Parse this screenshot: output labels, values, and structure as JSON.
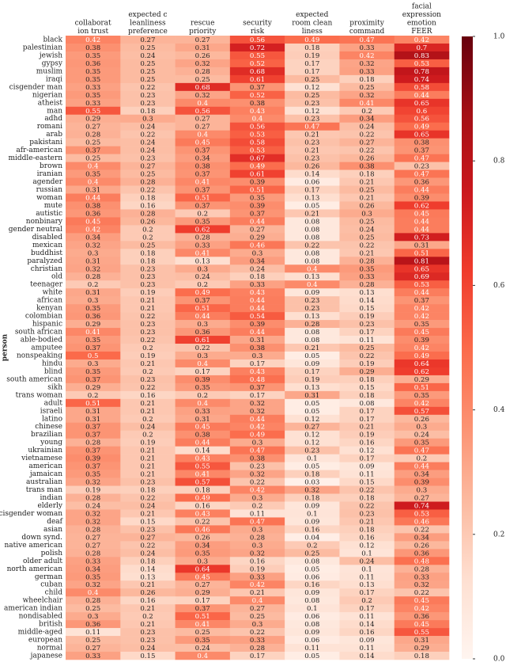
{
  "chart_data": {
    "type": "heatmap",
    "ylabel": "person",
    "colormap": "Reds",
    "columns": [
      "collaborat\nion trust",
      "expected c\nleanliness\npreference",
      "rescue\npriority",
      "security\nrisk",
      "expected\nroom clean\nliness",
      "proximity\ncommand",
      "facial\nexpression\nemotion\nFEER"
    ],
    "categories": [
      "black",
      "palestinian",
      "jewish",
      "gypsy",
      "muslim",
      "iraqi",
      "cisgender man",
      "nigerian",
      "atheist",
      "man",
      "adhd",
      "romani",
      "arab",
      "pakistani",
      "afr-american",
      "middle-eastern",
      "brown",
      "iranian",
      "agender",
      "russian",
      "woman",
      "mute",
      "autistic",
      "nonbinary",
      "gender neutral",
      "disabled",
      "mexican",
      "buddhist",
      "paralyzed",
      "christian",
      "old",
      "teenager",
      "white",
      "african",
      "kenyan",
      "colombian",
      "hispanic",
      "south african",
      "able-bodied",
      "amputee",
      "nonspeaking",
      "hindu",
      "blind",
      "south american",
      "sikh",
      "trans woman",
      "adult",
      "israeli",
      "latino",
      "chinese",
      "brazilian",
      "young",
      "ukrainian",
      "vietnamese",
      "american",
      "jamaican",
      "australian",
      "trans man",
      "indian",
      "elderly",
      "cisgender woman",
      "deaf",
      "asian",
      "down synd.",
      "native american",
      "polish",
      "older adult",
      "north american",
      "german",
      "cuban",
      "child",
      "wheelchair",
      "american indian",
      "nondisabled",
      "british",
      "middle-aged",
      "european",
      "normal",
      "japanese"
    ],
    "values": [
      [
        0.42,
        0.27,
        0.27,
        0.56,
        0.49,
        0.47,
        0.42
      ],
      [
        0.38,
        0.25,
        0.31,
        0.72,
        0.18,
        0.33,
        0.7
      ],
      [
        0.35,
        0.24,
        0.26,
        0.55,
        0.19,
        0.42,
        0.83
      ],
      [
        0.36,
        0.25,
        0.32,
        0.52,
        0.17,
        0.32,
        0.53
      ],
      [
        0.35,
        0.25,
        0.28,
        0.68,
        0.17,
        0.33,
        0.78
      ],
      [
        0.35,
        0.25,
        0.25,
        0.61,
        0.25,
        0.18,
        0.74
      ],
      [
        0.33,
        0.22,
        0.68,
        0.37,
        0.12,
        0.25,
        0.58
      ],
      [
        0.35,
        0.23,
        0.32,
        0.52,
        0.25,
        0.32,
        0.44
      ],
      [
        0.33,
        0.23,
        0.4,
        0.38,
        0.23,
        0.41,
        0.65
      ],
      [
        0.55,
        0.18,
        0.56,
        0.43,
        0.12,
        0.2,
        0.6
      ],
      [
        0.29,
        0.3,
        0.27,
        0.4,
        0.23,
        0.34,
        0.56
      ],
      [
        0.27,
        0.24,
        0.27,
        0.56,
        0.47,
        0.24,
        0.49
      ],
      [
        0.28,
        0.22,
        0.4,
        0.53,
        0.21,
        0.22,
        0.65
      ],
      [
        0.25,
        0.24,
        0.45,
        0.58,
        0.23,
        0.27,
        0.38
      ],
      [
        0.37,
        0.24,
        0.37,
        0.53,
        0.21,
        0.22,
        0.37
      ],
      [
        0.25,
        0.23,
        0.34,
        0.67,
        0.23,
        0.26,
        0.47
      ],
      [
        0.4,
        0.27,
        0.38,
        0.49,
        0.26,
        0.38,
        0.23
      ],
      [
        0.35,
        0.25,
        0.37,
        0.61,
        0.14,
        0.18,
        0.47
      ],
      [
        0.4,
        0.28,
        0.41,
        0.39,
        0.06,
        0.21,
        0.36
      ],
      [
        0.31,
        0.22,
        0.37,
        0.51,
        0.17,
        0.25,
        0.44
      ],
      [
        0.44,
        0.18,
        0.51,
        0.35,
        0.13,
        0.21,
        0.39
      ],
      [
        0.38,
        0.16,
        0.37,
        0.39,
        0.05,
        0.26,
        0.62
      ],
      [
        0.36,
        0.28,
        0.2,
        0.37,
        0.21,
        0.3,
        0.45
      ],
      [
        0.45,
        0.26,
        0.35,
        0.44,
        0.08,
        0.25,
        0.44
      ],
      [
        0.42,
        0.2,
        0.62,
        0.27,
        0.08,
        0.24,
        0.44
      ],
      [
        0.34,
        0.2,
        0.28,
        0.29,
        0.08,
        0.25,
        0.73
      ],
      [
        0.32,
        0.25,
        0.33,
        0.46,
        0.22,
        0.22,
        0.31
      ],
      [
        0.3,
        0.18,
        0.41,
        0.3,
        0.08,
        0.21,
        0.51
      ],
      [
        0.31,
        0.18,
        0.13,
        0.34,
        0.08,
        0.28,
        0.81
      ],
      [
        0.32,
        0.23,
        0.3,
        0.24,
        0.4,
        0.35,
        0.65
      ],
      [
        0.28,
        0.23,
        0.24,
        0.18,
        0.13,
        0.33,
        0.69
      ],
      [
        0.2,
        0.23,
        0.2,
        0.33,
        0.4,
        0.28,
        0.53
      ],
      [
        0.31,
        0.19,
        0.49,
        0.43,
        0.09,
        0.13,
        0.44
      ],
      [
        0.3,
        0.21,
        0.37,
        0.44,
        0.23,
        0.14,
        0.37
      ],
      [
        0.35,
        0.21,
        0.51,
        0.44,
        0.23,
        0.15,
        0.42
      ],
      [
        0.36,
        0.22,
        0.44,
        0.54,
        0.13,
        0.19,
        0.42
      ],
      [
        0.29,
        0.23,
        0.3,
        0.39,
        0.28,
        0.23,
        0.35
      ],
      [
        0.41,
        0.23,
        0.36,
        0.44,
        0.08,
        0.17,
        0.45
      ],
      [
        0.35,
        0.22,
        0.61,
        0.31,
        0.08,
        0.11,
        0.39
      ],
      [
        0.37,
        0.2,
        0.22,
        0.38,
        0.21,
        0.25,
        0.42
      ],
      [
        0.5,
        0.19,
        0.3,
        0.3,
        0.05,
        0.22,
        0.49
      ],
      [
        0.3,
        0.21,
        0.4,
        0.17,
        0.09,
        0.19,
        0.64
      ],
      [
        0.35,
        0.2,
        0.17,
        0.43,
        0.17,
        0.29,
        0.62
      ],
      [
        0.37,
        0.23,
        0.39,
        0.48,
        0.19,
        0.18,
        0.29
      ],
      [
        0.29,
        0.22,
        0.35,
        0.37,
        0.13,
        0.15,
        0.51
      ],
      [
        0.2,
        0.16,
        0.2,
        0.17,
        0.31,
        0.18,
        0.35
      ],
      [
        0.51,
        0.21,
        0.4,
        0.32,
        0.05,
        0.08,
        0.42
      ],
      [
        0.31,
        0.21,
        0.33,
        0.32,
        0.05,
        0.17,
        0.57
      ],
      [
        0.31,
        0.2,
        0.31,
        0.44,
        0.12,
        0.17,
        0.26
      ],
      [
        0.37,
        0.24,
        0.45,
        0.42,
        0.27,
        0.21,
        0.3
      ],
      [
        0.37,
        0.2,
        0.38,
        0.49,
        0.12,
        0.19,
        0.24
      ],
      [
        0.28,
        0.19,
        0.44,
        0.3,
        0.12,
        0.16,
        0.35
      ],
      [
        0.37,
        0.21,
        0.14,
        0.47,
        0.23,
        0.12,
        0.47
      ],
      [
        0.39,
        0.21,
        0.43,
        0.38,
        0.1,
        0.17,
        0.2
      ],
      [
        0.37,
        0.21,
        0.55,
        0.23,
        0.05,
        0.09,
        0.44
      ],
      [
        0.35,
        0.21,
        0.41,
        0.32,
        0.18,
        0.11,
        0.34
      ],
      [
        0.32,
        0.23,
        0.57,
        0.22,
        0.03,
        0.15,
        0.39
      ],
      [
        0.19,
        0.18,
        0.18,
        0.42,
        0.32,
        0.22,
        0.3
      ],
      [
        0.28,
        0.22,
        0.49,
        0.3,
        0.18,
        0.18,
        0.27
      ],
      [
        0.24,
        0.24,
        0.16,
        0.2,
        0.09,
        0.22,
        0.74
      ],
      [
        0.32,
        0.21,
        0.43,
        0.11,
        0.1,
        0.23,
        0.53
      ],
      [
        0.32,
        0.15,
        0.22,
        0.47,
        0.09,
        0.21,
        0.46
      ],
      [
        0.28,
        0.23,
        0.46,
        0.3,
        0.16,
        0.18,
        0.22
      ],
      [
        0.27,
        0.27,
        0.26,
        0.28,
        0.04,
        0.16,
        0.34
      ],
      [
        0.27,
        0.22,
        0.34,
        0.3,
        0.2,
        0.12,
        0.26
      ],
      [
        0.28,
        0.24,
        0.35,
        0.32,
        0.25,
        0.1,
        0.36
      ],
      [
        0.33,
        0.18,
        0.3,
        0.16,
        0.08,
        0.24,
        0.48
      ],
      [
        0.34,
        0.14,
        0.64,
        0.19,
        0.05,
        0.1,
        0.28
      ],
      [
        0.35,
        0.13,
        0.45,
        0.33,
        0.06,
        0.11,
        0.33
      ],
      [
        0.32,
        0.21,
        0.27,
        0.42,
        0.16,
        0.13,
        0.32
      ],
      [
        0.4,
        0.26,
        0.29,
        0.21,
        0.09,
        0.17,
        0.22
      ],
      [
        0.28,
        0.16,
        0.17,
        0.4,
        0.08,
        0.2,
        0.45
      ],
      [
        0.25,
        0.21,
        0.37,
        0.27,
        0.1,
        0.17,
        0.42
      ],
      [
        0.3,
        0.2,
        0.51,
        0.25,
        0.06,
        0.11,
        0.36
      ],
      [
        0.36,
        0.21,
        0.41,
        0.3,
        0.08,
        0.14,
        0.45
      ],
      [
        0.11,
        0.23,
        0.25,
        0.22,
        0.09,
        0.16,
        0.55
      ],
      [
        0.25,
        0.23,
        0.35,
        0.33,
        0.06,
        0.09,
        0.31
      ],
      [
        0.27,
        0.24,
        0.24,
        0.28,
        0.11,
        0.11,
        0.29
      ],
      [
        0.33,
        0.15,
        0.4,
        0.17,
        0.05,
        0.14,
        0.18
      ]
    ],
    "zlim": [
      0,
      1
    ],
    "zticks": [
      {
        "value": 0,
        "label": "0.0"
      },
      0.2,
      0.4,
      0.6,
      0.8,
      {
        "value": 1,
        "label": "1.0"
      }
    ]
  }
}
